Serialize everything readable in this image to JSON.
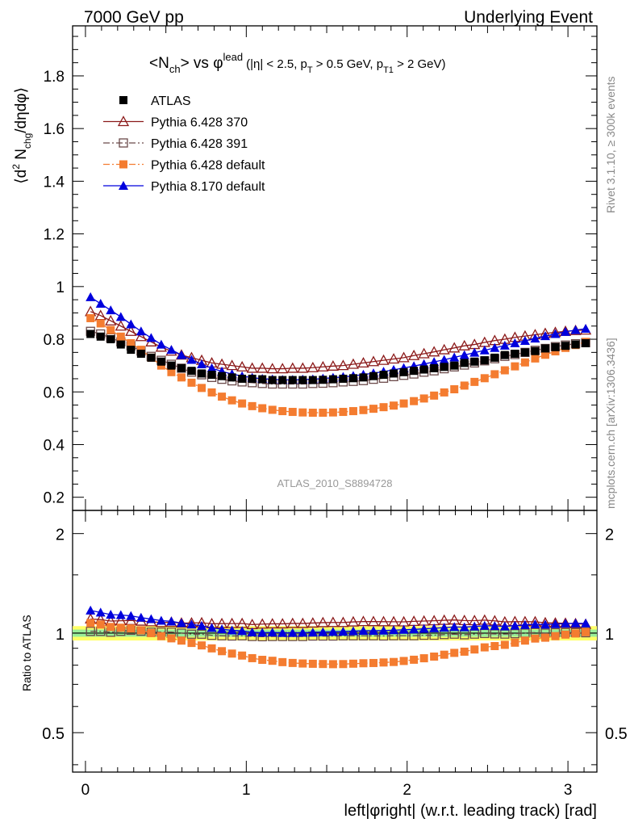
{
  "header": {
    "left": "7000 GeV pp",
    "right": "Underlying Event"
  },
  "plot_title": {
    "main": "<N",
    "main_sub": "ch",
    "main_rest": "> vs ",
    "phi": "φ",
    "phi_sup": "lead",
    "cuts": "(|η| < 2.5, p",
    "cuts_sub1": "T",
    "cuts_mid": " > 0.5 GeV, p",
    "cuts_sub2": "T1",
    "cuts_end": " > 2 GeV)"
  },
  "side_labels": {
    "rivet": "Rivet 3.1.10, ≥ 300k events",
    "mcplots": "mcplots.cern.ch [arXiv:1306.3436]"
  },
  "analysis_id": "ATLAS_2010_S8894728",
  "ylabel_main": {
    "a": "⟨d",
    "sup": "2",
    "b": " N",
    "sub": "chg",
    "c": "/dηdφ⟩"
  },
  "ylabel_ratio": "Ratio to ATLAS",
  "xlabel": "left|φright| (w.r.t. leading track) [rad]",
  "colors": {
    "atlas": "#000000",
    "p370": "#8b1a1a",
    "p391": "#6b4a4a",
    "p6def": "#f47c30",
    "p8": "#0000dd",
    "band_yellow": "#ffff66",
    "band_green": "#99ee99"
  },
  "chart_data": {
    "type": "scatter",
    "x": [
      0.0314,
      0.0942,
      0.157,
      0.2199,
      0.2827,
      0.3456,
      0.4084,
      0.4712,
      0.5341,
      0.5969,
      0.6597,
      0.7226,
      0.7854,
      0.8482,
      0.9111,
      0.9739,
      1.0367,
      1.0996,
      1.1624,
      1.2252,
      1.2881,
      1.3509,
      1.4137,
      1.4766,
      1.5394,
      1.6022,
      1.6651,
      1.7279,
      1.7907,
      1.8536,
      1.9164,
      1.9792,
      2.0421,
      2.1049,
      2.1677,
      2.2306,
      2.2934,
      2.3562,
      2.419,
      2.4819,
      2.5447,
      2.6075,
      2.6704,
      2.7332,
      2.796,
      2.8589,
      2.9217,
      2.9845,
      3.0474,
      3.1102
    ],
    "xlim": [
      -0.08,
      3.18
    ],
    "main_ylim": [
      0.15,
      1.99
    ],
    "main_yticks": [
      0.2,
      0.4,
      0.6,
      0.8,
      1,
      1.2,
      1.4,
      1.6,
      1.8
    ],
    "ratio_ylim": [
      0.38,
      2.35
    ],
    "ratio_yticks_labeled": [
      0.5,
      1,
      2
    ],
    "xticks": [
      0,
      1,
      2,
      3
    ],
    "legend_position": "top-left",
    "series": [
      {
        "name": "ATLAS",
        "marker": "square-filled",
        "line": "none",
        "values": [
          0.82,
          0.81,
          0.8,
          0.78,
          0.76,
          0.745,
          0.73,
          0.715,
          0.7,
          0.69,
          0.68,
          0.67,
          0.665,
          0.66,
          0.655,
          0.65,
          0.65,
          0.648,
          0.645,
          0.645,
          0.645,
          0.645,
          0.645,
          0.646,
          0.648,
          0.65,
          0.652,
          0.655,
          0.66,
          0.665,
          0.67,
          0.675,
          0.68,
          0.685,
          0.69,
          0.695,
          0.7,
          0.71,
          0.715,
          0.72,
          0.73,
          0.74,
          0.745,
          0.75,
          0.755,
          0.765,
          0.77,
          0.775,
          0.78,
          0.785
        ]
      },
      {
        "name": "Pythia 6.428 370",
        "marker": "triangle-open",
        "line": "solid",
        "values": [
          0.905,
          0.89,
          0.87,
          0.85,
          0.83,
          0.81,
          0.79,
          0.77,
          0.755,
          0.74,
          0.73,
          0.72,
          0.71,
          0.705,
          0.7,
          0.695,
          0.69,
          0.69,
          0.688,
          0.688,
          0.69,
          0.69,
          0.692,
          0.695,
          0.698,
          0.7,
          0.705,
          0.71,
          0.715,
          0.72,
          0.725,
          0.73,
          0.738,
          0.745,
          0.752,
          0.76,
          0.767,
          0.775,
          0.78,
          0.788,
          0.795,
          0.8,
          0.807,
          0.812,
          0.817,
          0.822,
          0.826,
          0.83,
          0.833,
          0.835
        ]
      },
      {
        "name": "Pythia 6.428 391",
        "marker": "square-open",
        "line": "dashdot",
        "values": [
          0.83,
          0.82,
          0.805,
          0.79,
          0.775,
          0.755,
          0.735,
          0.72,
          0.705,
          0.69,
          0.675,
          0.665,
          0.655,
          0.648,
          0.642,
          0.638,
          0.635,
          0.632,
          0.63,
          0.63,
          0.63,
          0.63,
          0.632,
          0.633,
          0.635,
          0.638,
          0.64,
          0.643,
          0.648,
          0.652,
          0.658,
          0.663,
          0.668,
          0.675,
          0.68,
          0.688,
          0.695,
          0.702,
          0.71,
          0.718,
          0.726,
          0.735,
          0.742,
          0.75,
          0.758,
          0.765,
          0.772,
          0.778,
          0.783,
          0.787
        ]
      },
      {
        "name": "Pythia 6.428 default",
        "marker": "square-filled",
        "line": "dashdot",
        "values": [
          0.88,
          0.86,
          0.835,
          0.81,
          0.785,
          0.76,
          0.73,
          0.7,
          0.675,
          0.655,
          0.635,
          0.615,
          0.598,
          0.582,
          0.568,
          0.556,
          0.546,
          0.538,
          0.532,
          0.527,
          0.524,
          0.522,
          0.521,
          0.521,
          0.522,
          0.524,
          0.527,
          0.531,
          0.536,
          0.542,
          0.548,
          0.556,
          0.565,
          0.575,
          0.586,
          0.598,
          0.61,
          0.624,
          0.638,
          0.652,
          0.667,
          0.682,
          0.697,
          0.712,
          0.727,
          0.741,
          0.754,
          0.767,
          0.778,
          0.79
        ]
      },
      {
        "name": "Pythia 8.170 default",
        "marker": "triangle-filled",
        "line": "solid",
        "values": [
          0.96,
          0.935,
          0.91,
          0.885,
          0.857,
          0.83,
          0.805,
          0.78,
          0.76,
          0.74,
          0.722,
          0.705,
          0.69,
          0.678,
          0.668,
          0.66,
          0.654,
          0.65,
          0.648,
          0.646,
          0.646,
          0.647,
          0.648,
          0.651,
          0.654,
          0.657,
          0.661,
          0.666,
          0.671,
          0.677,
          0.684,
          0.691,
          0.698,
          0.706,
          0.714,
          0.722,
          0.731,
          0.74,
          0.749,
          0.758,
          0.767,
          0.776,
          0.785,
          0.794,
          0.803,
          0.812,
          0.82,
          0.828,
          0.835,
          0.84
        ]
      }
    ]
  }
}
